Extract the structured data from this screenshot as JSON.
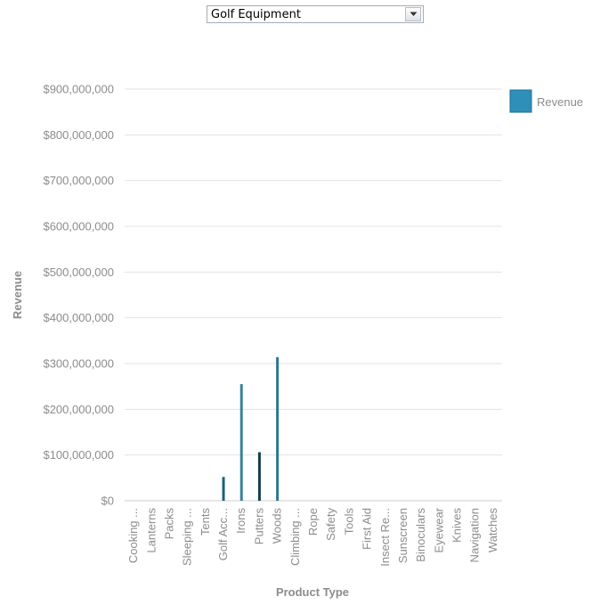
{
  "filter": {
    "selected": "Golf Equipment"
  },
  "chart_data": {
    "type": "bar",
    "title": "",
    "xlabel": "Product Type",
    "ylabel": "Revenue",
    "ylim": [
      0,
      900000000
    ],
    "yticks": [
      0,
      100000000,
      200000000,
      300000000,
      400000000,
      500000000,
      600000000,
      700000000,
      800000000,
      900000000
    ],
    "ytick_labels": [
      "$0",
      "$100,000,000",
      "$200,000,000",
      "$300,000,000",
      "$400,000,000",
      "$500,000,000",
      "$600,000,000",
      "$700,000,000",
      "$800,000,000",
      "$900,000,000"
    ],
    "categories": [
      "Cooking ...",
      "Lanterns",
      "Packs",
      "Sleeping ...",
      "Tents",
      "Golf Acc...",
      "Irons",
      "Putters",
      "Woods",
      "Climbing ...",
      "Rope",
      "Safety",
      "Tools",
      "First Aid",
      "Insect Re...",
      "Sunscreen",
      "Binoculars",
      "Eyewear",
      "Knives",
      "Navigation",
      "Watches"
    ],
    "series": [
      {
        "name": "Revenue",
        "color": "#2e8fb9",
        "values": [
          0,
          0,
          0,
          0,
          0,
          52000000,
          255000000,
          106000000,
          314000000,
          0,
          0,
          0,
          0,
          0,
          0,
          0,
          0,
          0,
          0,
          0,
          0
        ]
      }
    ],
    "bar_colors": {
      "Golf Acc...": "#1d607c",
      "Irons": "#3b8197",
      "Putters": "#173e4c",
      "Woods": "#2c7694"
    },
    "grid": true,
    "legend_position": "top-right"
  }
}
